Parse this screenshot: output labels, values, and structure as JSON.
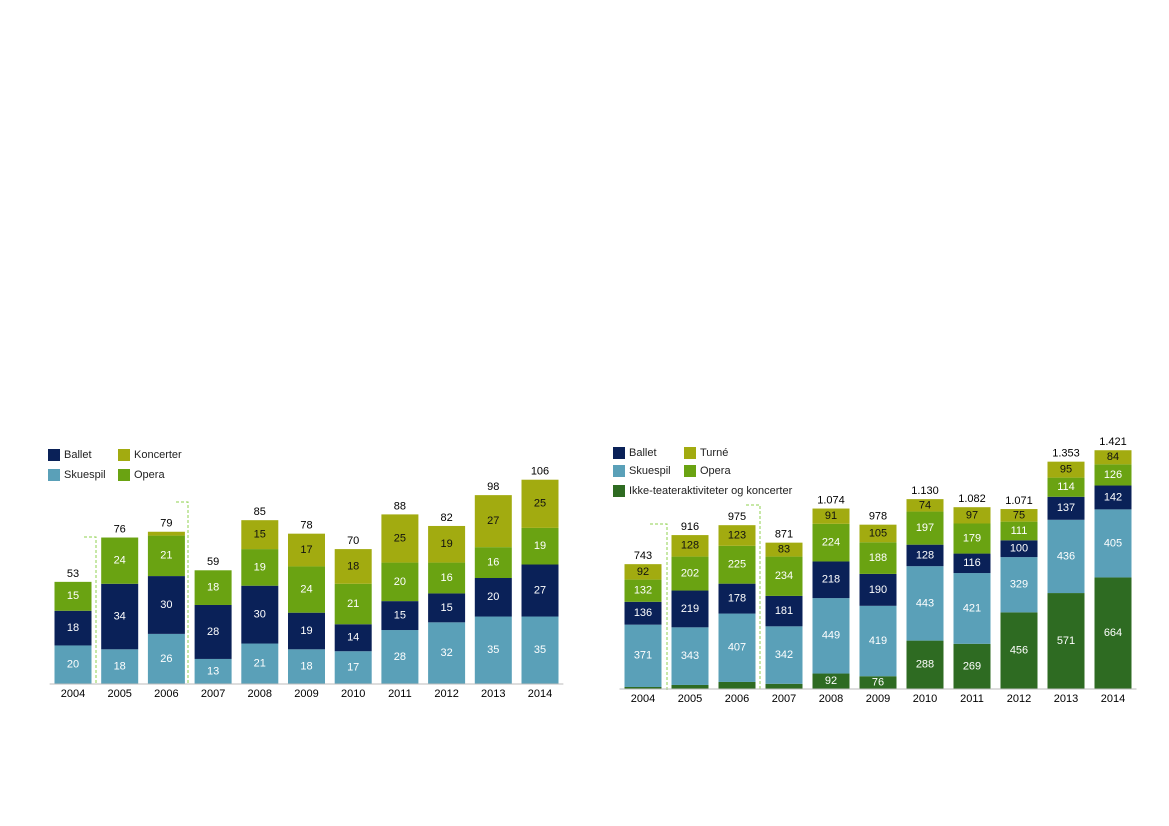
{
  "chart_data": [
    {
      "type": "bar",
      "stacked": true,
      "categories": [
        "2004",
        "2005",
        "2006",
        "2007",
        "2008",
        "2009",
        "2010",
        "2011",
        "2012",
        "2013",
        "2014"
      ],
      "series": [
        {
          "name": "Skuespil",
          "color": "#5aa0b8",
          "values": [
            20,
            18,
            26,
            13,
            21,
            18,
            17,
            28,
            32,
            35,
            35
          ]
        },
        {
          "name": "Ballet",
          "color": "#0a2158",
          "values": [
            18,
            34,
            30,
            28,
            30,
            19,
            14,
            15,
            15,
            20,
            27
          ]
        },
        {
          "name": "Opera",
          "color": "#6aa312",
          "values": [
            15,
            24,
            21,
            18,
            19,
            24,
            21,
            20,
            16,
            16,
            19
          ]
        },
        {
          "name": "Koncerter",
          "color": "#a2ab10",
          "values": [
            null,
            null,
            2,
            null,
            15,
            17,
            18,
            25,
            19,
            27,
            25
          ]
        }
      ],
      "totals": [
        53,
        76,
        79,
        59,
        85,
        78,
        70,
        88,
        82,
        98,
        106
      ],
      "ylim": [
        0,
        110
      ]
    },
    {
      "type": "bar",
      "stacked": true,
      "categories": [
        "2004",
        "2005",
        "2006",
        "2007",
        "2008",
        "2009",
        "2010",
        "2011",
        "2012",
        "2013",
        "2014"
      ],
      "series": [
        {
          "name": "Ikke-teateraktiviteter og koncerter",
          "color": "#2e6b22",
          "values": [
            12,
            24,
            42,
            31,
            92,
            76,
            288,
            269,
            456,
            571,
            664
          ]
        },
        {
          "name": "Skuespil",
          "color": "#5aa0b8",
          "values": [
            371,
            343,
            407,
            342,
            449,
            419,
            443,
            421,
            329,
            436,
            405
          ]
        },
        {
          "name": "Ballet",
          "color": "#0a2158",
          "values": [
            136,
            219,
            178,
            181,
            218,
            190,
            128,
            116,
            100,
            137,
            142
          ]
        },
        {
          "name": "Opera",
          "color": "#6aa312",
          "values": [
            132,
            202,
            225,
            234,
            224,
            188,
            197,
            179,
            111,
            114,
            126
          ]
        },
        {
          "name": "Turné",
          "color": "#a2ab10",
          "values": [
            92,
            128,
            123,
            83,
            91,
            105,
            74,
            97,
            75,
            95,
            84
          ]
        }
      ],
      "totals": [
        743,
        916,
        975,
        871,
        {
          "value": 1074,
          "label": "1.074"
        },
        978,
        {
          "value": 1130,
          "label": "1.130"
        },
        {
          "value": 1082,
          "label": "1.082"
        },
        {
          "value": 1071,
          "label": "1.071"
        },
        {
          "value": 1353,
          "label": "1.353"
        },
        {
          "value": 1421,
          "label": "1.421"
        }
      ],
      "ylim": [
        0,
        1470
      ]
    }
  ]
}
